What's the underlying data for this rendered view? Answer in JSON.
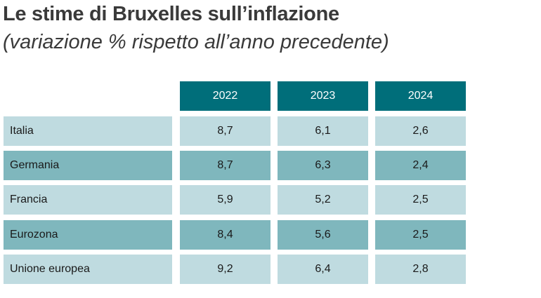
{
  "title": "Le stime di Bruxelles sull’inflazione",
  "subtitle": "(variazione % rispetto all’anno precedente)",
  "colors": {
    "header": "#006e7a",
    "row_light": "#bfdbe0",
    "row_dark": "#7fb7bd"
  },
  "chart_data": {
    "type": "table",
    "title": "Le stime di Bruxelles sull’inflazione",
    "subtitle": "(variazione % rispetto all’anno precedente)",
    "columns": [
      "2022",
      "2023",
      "2024"
    ],
    "rows": [
      {
        "label": "Italia",
        "values": [
          "8,7",
          "6,1",
          "2,6"
        ]
      },
      {
        "label": "Germania",
        "values": [
          "8,7",
          "6,3",
          "2,4"
        ]
      },
      {
        "label": "Francia",
        "values": [
          "5,9",
          "5,2",
          "2,5"
        ]
      },
      {
        "label": "Eurozona",
        "values": [
          "8,4",
          "5,6",
          "2,5"
        ]
      },
      {
        "label": "Unione europea",
        "values": [
          "9,2",
          "6,4",
          "2,8"
        ]
      }
    ]
  }
}
